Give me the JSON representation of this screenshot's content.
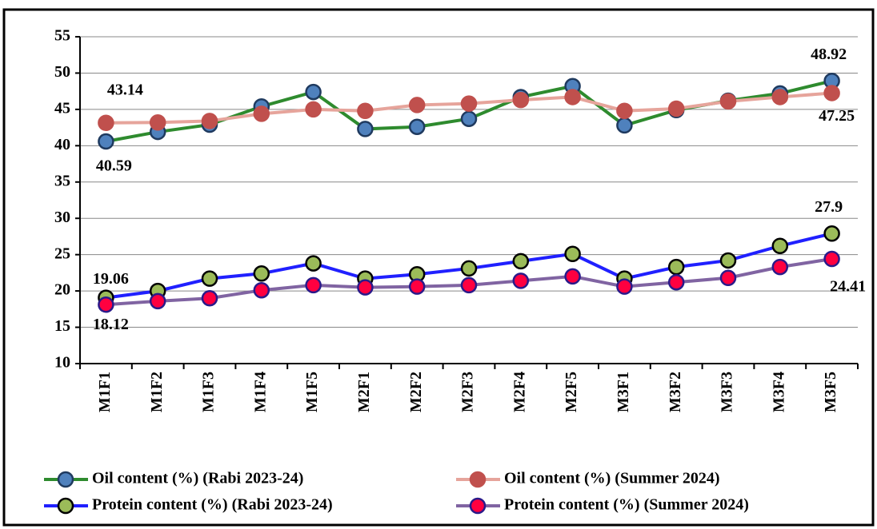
{
  "chart_data": {
    "type": "line",
    "categories": [
      "M1F1",
      "M1F2",
      "M1F3",
      "M1F4",
      "M1F5",
      "M2F1",
      "M2F2",
      "M2F3",
      "M2F4",
      "M2F5",
      "M3F1",
      "M3F2",
      "M3F3",
      "M3F4",
      "M3F5"
    ],
    "series": [
      {
        "name": "Oil content (%) (Rabi 2023-24)",
        "color": "#2e8b2e",
        "marker_color": "#4f81bd",
        "marker_edge": "#1f3a5f",
        "values": [
          40.59,
          41.9,
          42.9,
          45.4,
          47.4,
          42.3,
          42.6,
          43.7,
          46.7,
          48.2,
          42.8,
          44.9,
          46.2,
          47.2,
          48.92
        ],
        "value_labels": [
          "40.59",
          null,
          null,
          null,
          null,
          null,
          null,
          null,
          null,
          null,
          null,
          null,
          null,
          null,
          "48.92"
        ]
      },
      {
        "name": "Oil content (%) (Summer 2024)",
        "color": "#e6a49b",
        "marker_color": "#c0504d",
        "marker_edge": "#c0504d",
        "values": [
          43.14,
          43.2,
          43.4,
          44.4,
          45.0,
          44.8,
          45.6,
          45.8,
          46.3,
          46.7,
          44.8,
          45.1,
          46.1,
          46.7,
          47.25
        ],
        "value_labels": [
          "43.14",
          null,
          null,
          null,
          null,
          null,
          null,
          null,
          null,
          null,
          null,
          null,
          null,
          null,
          "47.25"
        ]
      },
      {
        "name": "Protein content (%) (Rabi 2023-24)",
        "color": "#2020ff",
        "marker_color": "#9bbb59",
        "marker_edge": "#000000",
        "values": [
          19.06,
          20.0,
          21.7,
          22.4,
          23.8,
          21.7,
          22.3,
          23.1,
          24.1,
          25.1,
          21.7,
          23.3,
          24.2,
          26.2,
          27.9
        ],
        "value_labels": [
          "19.06",
          null,
          null,
          null,
          null,
          null,
          null,
          null,
          null,
          null,
          null,
          null,
          null,
          null,
          "27.9"
        ]
      },
      {
        "name": "Protein content (%) (Summer 2024)",
        "color": "#8064a2",
        "marker_color": "#ff0040",
        "marker_edge": "#2a1a8a",
        "values": [
          18.12,
          18.6,
          19.0,
          20.1,
          20.8,
          20.5,
          20.6,
          20.8,
          21.4,
          22.0,
          20.6,
          21.2,
          21.8,
          23.3,
          24.41
        ],
        "value_labels": [
          "18.12",
          null,
          null,
          null,
          null,
          null,
          null,
          null,
          null,
          null,
          null,
          null,
          null,
          null,
          "24.41"
        ]
      }
    ],
    "ylim": [
      10,
      55
    ],
    "yticks": [
      10,
      15,
      20,
      25,
      30,
      35,
      40,
      45,
      50,
      55
    ],
    "grid": true
  }
}
